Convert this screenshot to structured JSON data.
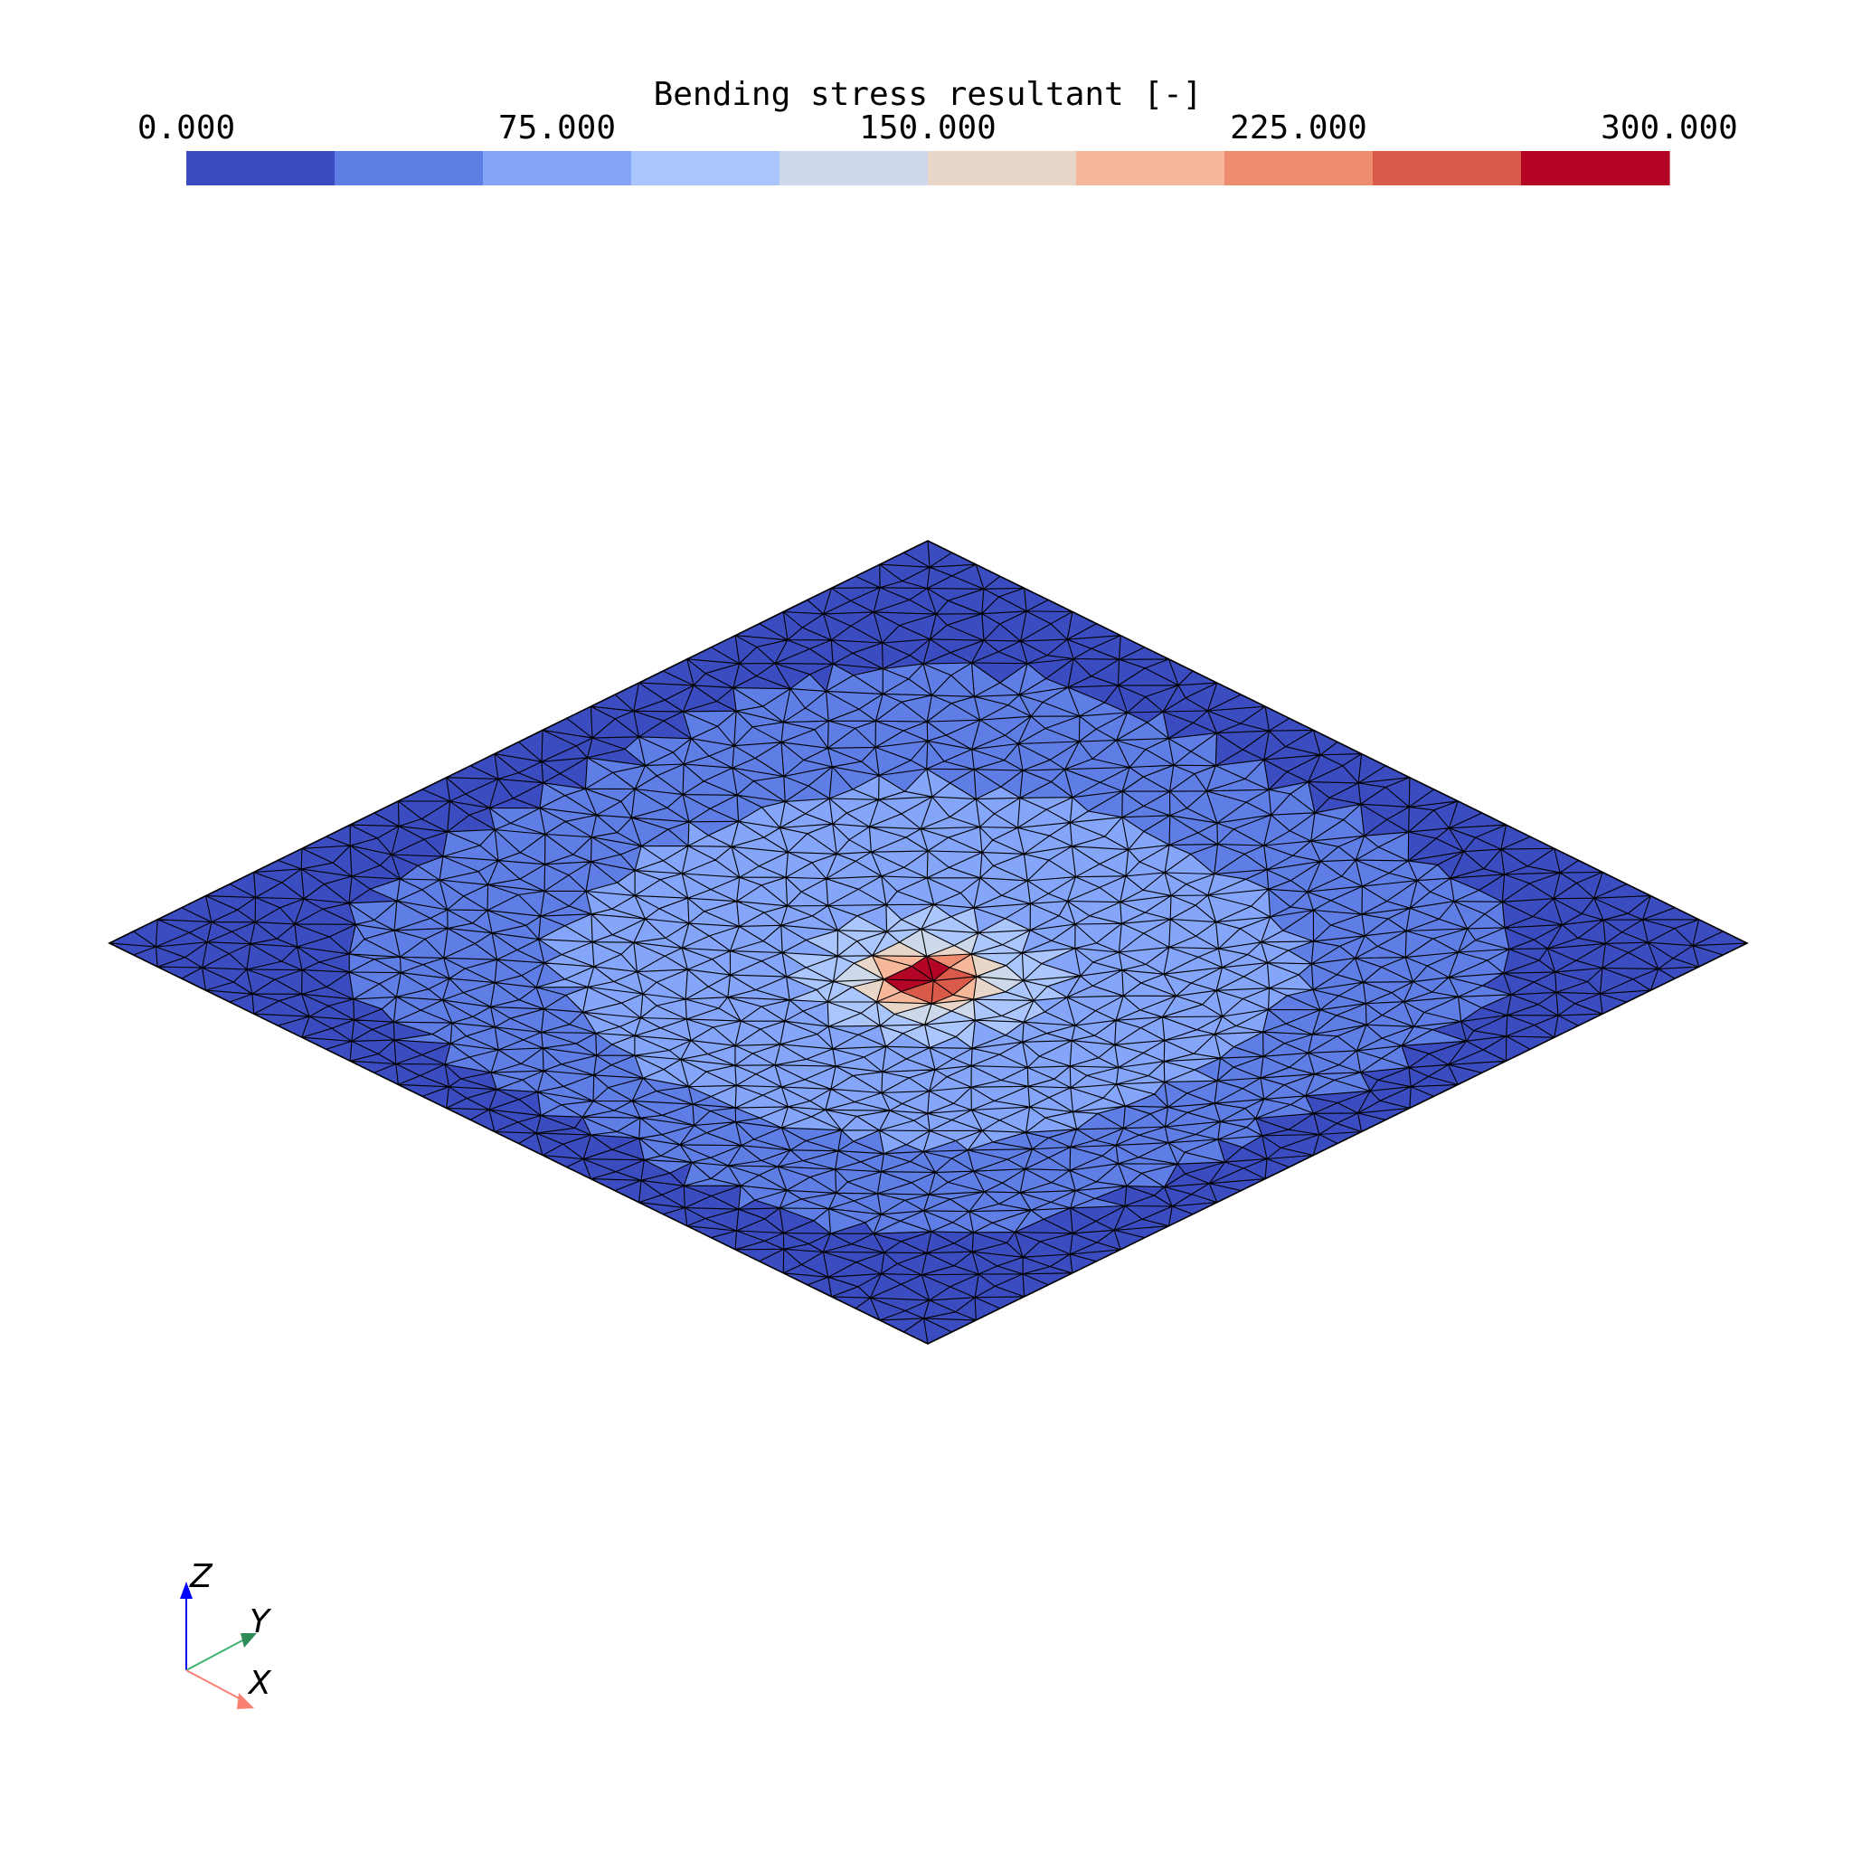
{
  "colorbar": {
    "title": "Bending stress resultant [-]",
    "min": 0,
    "max": 300,
    "ticks": [
      "0.000",
      "75.000",
      "150.000",
      "225.000",
      "300.000"
    ],
    "band_colors": [
      "#3b4cc0",
      "#5977e3",
      "#7b9ff9",
      "#9ebeff",
      "#c0d4f5",
      "#dddcdc",
      "#f2cbb7",
      "#f7ac8e",
      "#ee8468",
      "#d65244",
      "#b40426"
    ]
  },
  "colormap_stops": [
    "#3b4cc0",
    "#5e7ee5",
    "#84a5f9",
    "#abc5fd",
    "#cdd8eb",
    "#e8d6c9",
    "#f6b79b",
    "#ee8c6f",
    "#da5a49",
    "#b40426"
  ],
  "plate": {
    "mesh": "triangular",
    "edge_color": "#000000",
    "field_peak_value": 300
  },
  "axes_triad": {
    "z": {
      "label": "Z",
      "color": "#0000ff"
    },
    "y": {
      "label": "Y",
      "color": "#2e8b57"
    },
    "x": {
      "label": "X",
      "color": "#fa8072"
    }
  }
}
